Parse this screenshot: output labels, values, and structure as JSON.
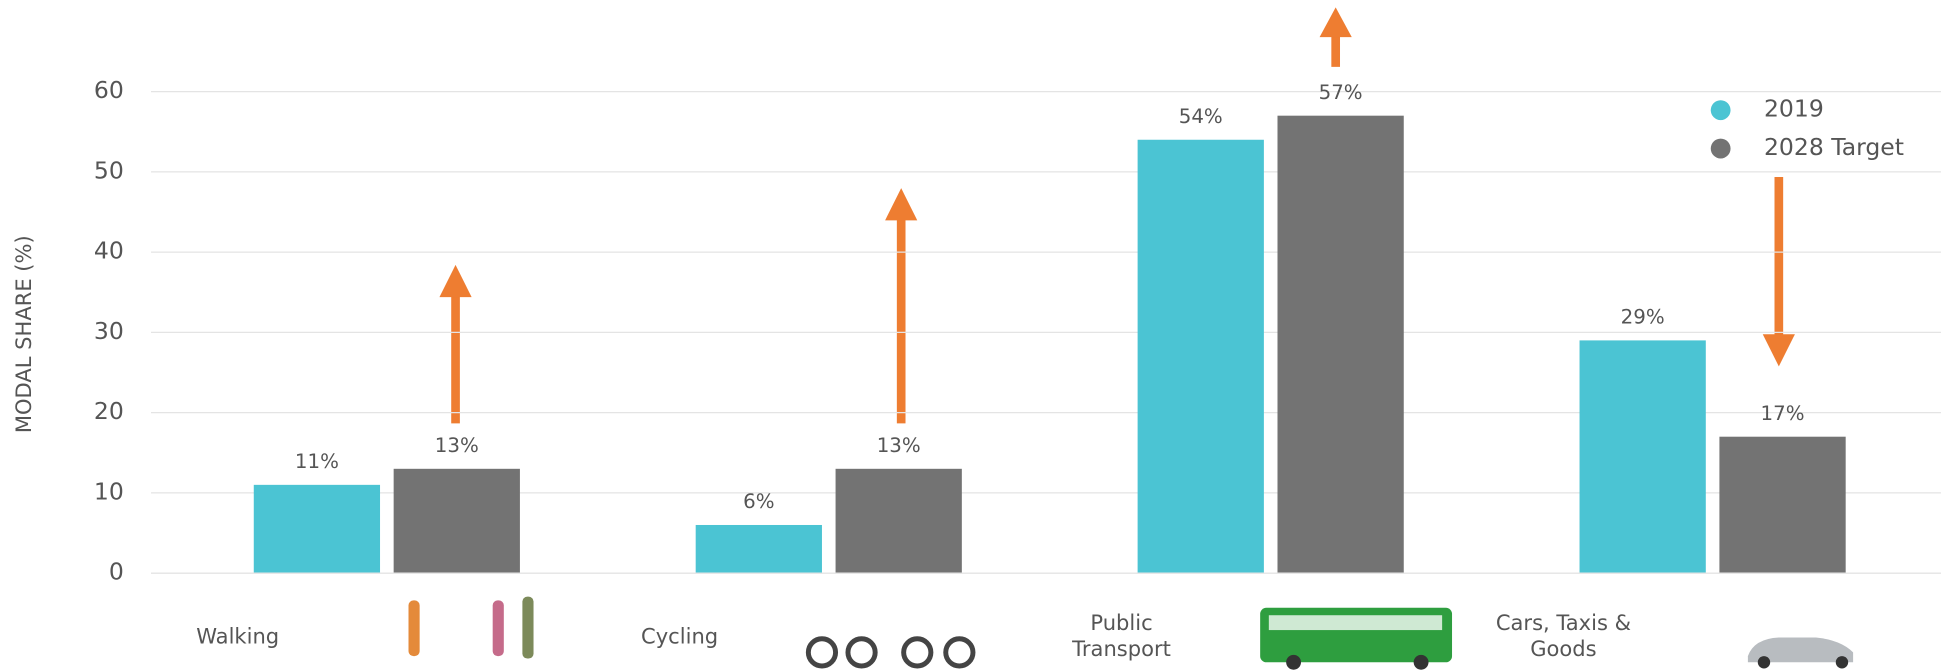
{
  "chart_data": {
    "type": "bar",
    "y_label": "MODAL SHARE (%)",
    "categories": [
      "Walking",
      "Cycling",
      "Public Transport",
      "Cars, Taxis & Goods"
    ],
    "series": [
      {
        "name": "2019",
        "color": "#4bc4d3",
        "values": [
          11,
          6,
          54,
          29
        ],
        "value_labels": [
          "11%",
          "6%",
          "54%",
          "29%"
        ]
      },
      {
        "name": "2028 Target",
        "color": "#737373",
        "values": [
          13,
          13,
          57,
          17
        ],
        "value_labels": [
          "13%",
          "13%",
          "57%",
          "17%"
        ]
      }
    ],
    "ylim": [
      0,
      60
    ],
    "yticks": [
      0,
      10,
      20,
      30,
      40,
      50,
      60
    ],
    "grid": true,
    "legend": "top-right"
  }
}
